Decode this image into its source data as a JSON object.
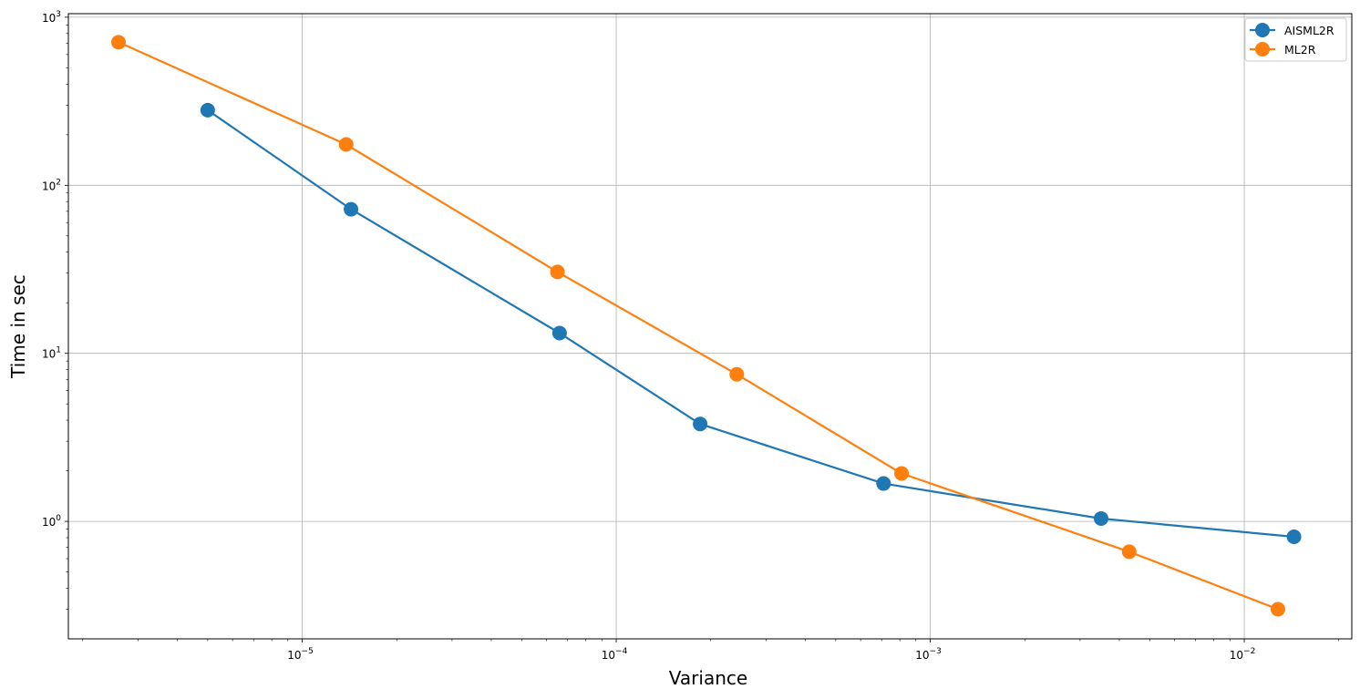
{
  "chart_data": {
    "type": "line",
    "xlabel": "Variance",
    "ylabel": "Time in sec",
    "xscale": "log",
    "yscale": "log",
    "xlim": [
      1.8e-06,
      0.022
    ],
    "ylim": [
      0.2,
      1050
    ],
    "grid": true,
    "legend_position": "top-right",
    "x_ticks": [
      {
        "value": 1e-05,
        "label": "10",
        "exp": "−5"
      },
      {
        "value": 0.0001,
        "label": "10",
        "exp": "−4"
      },
      {
        "value": 0.001,
        "label": "10",
        "exp": "−3"
      },
      {
        "value": 0.01,
        "label": "10",
        "exp": "−2"
      }
    ],
    "y_ticks": [
      {
        "value": 1,
        "label": "10",
        "exp": "0"
      },
      {
        "value": 10,
        "label": "10",
        "exp": "1"
      },
      {
        "value": 100,
        "label": "10",
        "exp": "2"
      },
      {
        "value": 1000,
        "label": "10",
        "exp": "3"
      }
    ],
    "series": [
      {
        "name": "AISML2R",
        "color": "#1f77b4",
        "x": [
          5e-06,
          1.43e-05,
          6.6e-05,
          0.000185,
          0.00071,
          0.0035,
          0.0144
        ],
        "y": [
          280,
          72,
          13.2,
          3.8,
          1.68,
          1.04,
          0.81
        ]
      },
      {
        "name": "ML2R",
        "color": "#ff7f0e",
        "x": [
          2.6e-06,
          1.38e-05,
          6.5e-05,
          0.000242,
          0.00081,
          0.0043,
          0.0128
        ],
        "y": [
          710,
          175,
          30.5,
          7.5,
          1.93,
          0.66,
          0.3
        ]
      }
    ]
  }
}
